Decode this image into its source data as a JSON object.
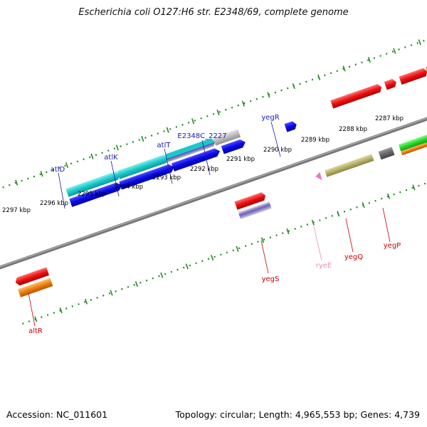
{
  "header": {
    "title": "Escherichia coli O127:H6 str. E2348/69, complete genome"
  },
  "footer": {
    "accession": "Accession: NC_011601",
    "summary": "Topology: circular; Length: 4,965,553 bp; Genes: 4,739"
  },
  "scale": {
    "ticks": [
      "2297 kbp",
      "2296 kbp",
      "2295 kbp",
      "2294 kbp",
      "2293 kbp",
      "2292 kbp",
      "2291 kbp",
      "2290 kbp",
      "2289 kbp",
      "2288 kbp",
      "2287 kbp"
    ]
  },
  "colors": {
    "tick": "#228b22",
    "backbone": "#888888",
    "label_top": "#1a1ab4",
    "label_bottom": "#cc0000",
    "label_rna": "#e78fb0",
    "cyan": "#1bc8c8",
    "blue": "#0a0ae6",
    "red": "#ee1111",
    "gray": "#bbbbbb",
    "olive": "#b5b06a",
    "orange": "#f07f0f",
    "green": "#22cc22",
    "darkgray": "#666666",
    "pink": "#e878c8",
    "purple": "#6c5cc8"
  },
  "genes": {
    "top": [
      "atlD",
      "atlK",
      "atlT",
      "E2348C_2227",
      "yegR"
    ],
    "bottom": [
      "altR",
      "yegS",
      "ryeE",
      "yegQ",
      "yegP"
    ]
  }
}
